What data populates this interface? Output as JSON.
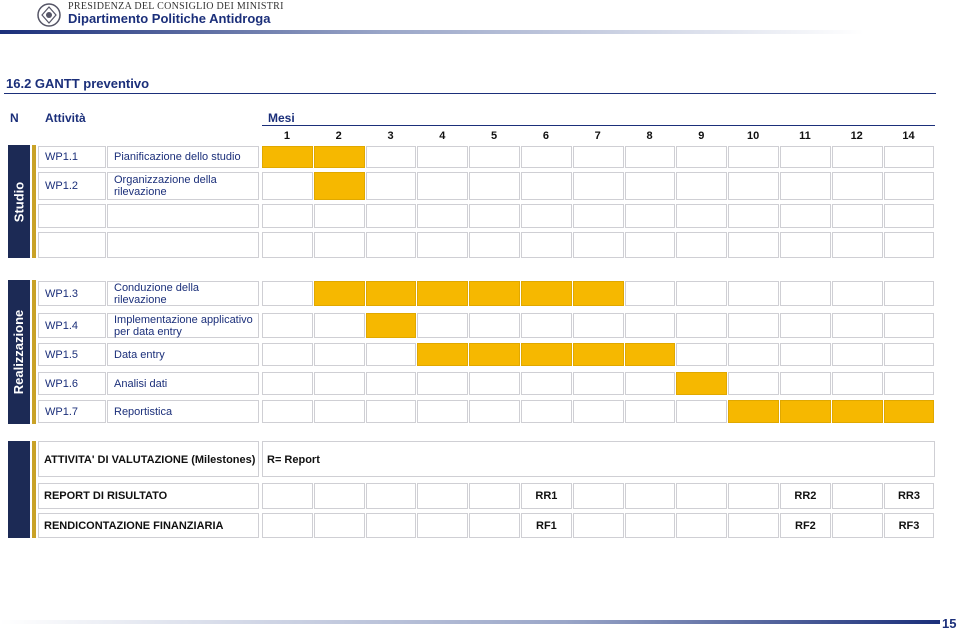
{
  "header": {
    "institution": "PRESIDENZA DEL CONSIGLIO DEI MINISTRI",
    "department": "Dipartimento Politiche Antidroga"
  },
  "section_title": "16.2 GANTT preventivo",
  "table": {
    "headers": [
      "N",
      "Attività",
      "Mesi"
    ],
    "months": [
      "1",
      "2",
      "3",
      "4",
      "5",
      "6",
      "7",
      "8",
      "9",
      "10",
      "11",
      "12",
      "14"
    ],
    "phases": [
      {
        "label": "Studio",
        "rows": [
          {
            "id": "WP1.1",
            "activity": "Pianificazione dello studio",
            "filled": [
              true,
              true,
              false,
              false,
              false,
              false,
              false,
              false,
              false,
              false,
              false,
              false,
              false
            ]
          },
          {
            "id": "WP1.2",
            "activity": "Organizzazione della\nrilevazione",
            "filled": [
              false,
              true,
              false,
              false,
              false,
              false,
              false,
              false,
              false,
              false,
              false,
              false,
              false
            ]
          },
          {
            "filled": [
              false,
              false,
              false,
              false,
              false,
              false,
              false,
              false,
              false,
              false,
              false,
              false,
              false
            ]
          },
          {
            "filled": [
              false,
              false,
              false,
              false,
              false,
              false,
              false,
              false,
              false,
              false,
              false,
              false,
              false
            ]
          }
        ]
      },
      {
        "label": "Realizzazione",
        "rows": [
          {
            "id": "WP1.3",
            "activity": "Conduzione della\nrilevazione",
            "filled": [
              false,
              true,
              true,
              true,
              true,
              true,
              true,
              false,
              false,
              false,
              false,
              false,
              false
            ]
          },
          {
            "id": "WP1.4",
            "activity": "Implementazione applicativo\nper data entry",
            "filled": [
              false,
              false,
              true,
              false,
              false,
              false,
              false,
              false,
              false,
              false,
              false,
              false,
              false
            ]
          },
          {
            "id": "WP1.5",
            "activity": "Data entry",
            "filled": [
              false,
              false,
              false,
              true,
              true,
              true,
              true,
              true,
              false,
              false,
              false,
              false,
              false
            ]
          },
          {
            "id": "WP1.6",
            "activity": "Analisi dati",
            "filled": [
              false,
              false,
              false,
              false,
              false,
              false,
              false,
              false,
              true,
              false,
              false,
              false,
              false
            ]
          },
          {
            "id": "WP1.7",
            "activity": "Reportistica",
            "filled": [
              false,
              false,
              false,
              false,
              false,
              false,
              false,
              false,
              false,
              true,
              true,
              true,
              true
            ]
          }
        ]
      }
    ]
  },
  "milestones": {
    "title": "ATTIVITA' DI VALUTAZIONE (Milestones)",
    "legend": "R= Report",
    "rows": [
      {
        "label": "REPORT DI RISULTATO",
        "marks": [
          null,
          null,
          null,
          null,
          null,
          "RR1",
          null,
          null,
          null,
          null,
          "RR2",
          null,
          "RR3"
        ]
      },
      {
        "label": "RENDICONTAZIONE FINANZIARIA",
        "marks": [
          null,
          null,
          null,
          null,
          null,
          "RF1",
          null,
          null,
          null,
          null,
          "RF2",
          null,
          "RF3"
        ]
      }
    ]
  },
  "page_number": "15"
}
